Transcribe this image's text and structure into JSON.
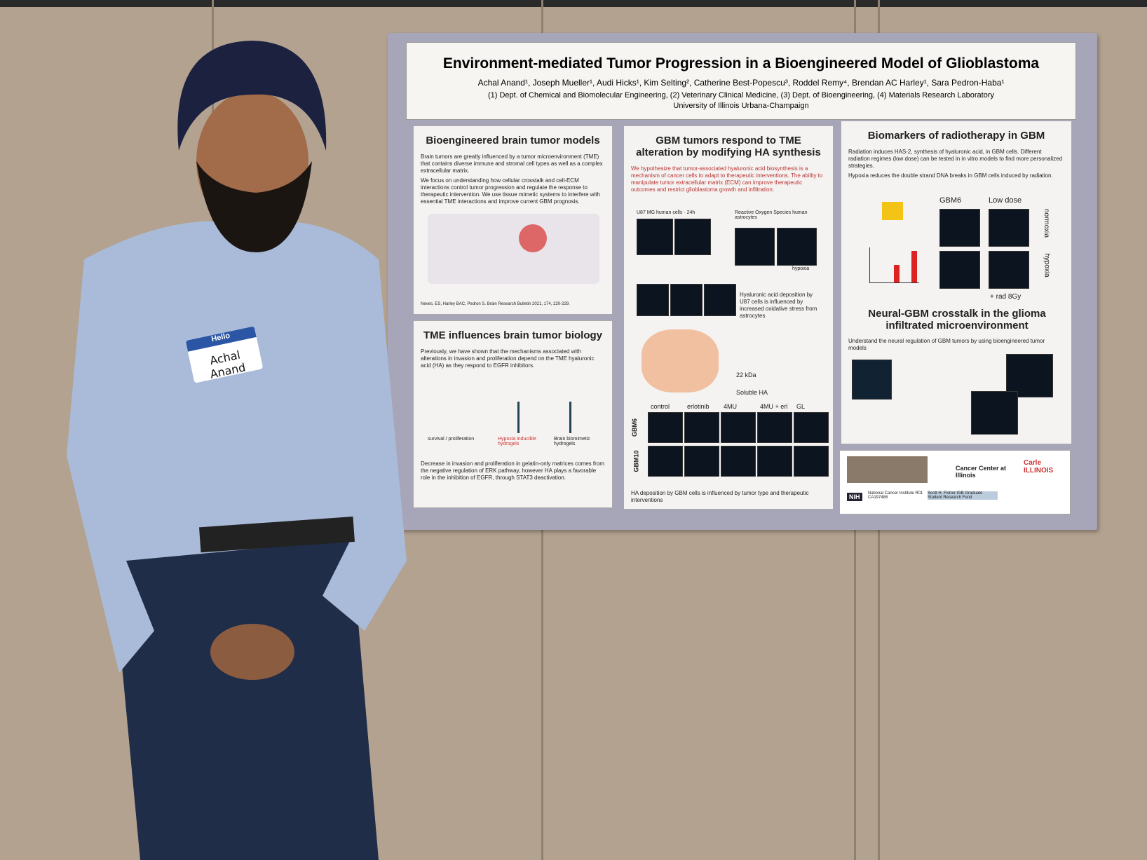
{
  "name_tag": {
    "greeting": "Hello",
    "name": "Achal Anand"
  },
  "poster": {
    "title": "Environment-mediated Tumor Progression in a Bioengineered Model of Glioblastoma",
    "authors": "Achal Anand¹, Joseph Mueller¹, Audi Hicks¹, Kim Selting², Catherine Best-Popescu³, Roddel Remy⁴, Brendan AC Harley¹, Sara Pedron-Haba¹",
    "affiliations": "(1) Dept. of Chemical and Biomolecular Engineering, (2) Veterinary Clinical Medicine, (3) Dept. of Bioengineering, (4) Materials Research Laboratory",
    "university": "University of Illinois Urbana-Champaign",
    "models": {
      "title": "Bioengineered brain tumor models",
      "p1": "Brain tumors are greatly influenced by a tumor microenvironment (TME) that contains diverse immune and stromal cell types as well as a complex extracellular matrix.",
      "p2": "We focus on understanding how cellular crosstalk and cell-ECM interactions control tumor progression and regulate the response to therapeutic intervention. We use tissue mimetic systems to interfere with essential TME interactions and improve current GBM prognosis.",
      "ref": "Neves, ES, Harley BAC, Pedron S. Brain Research Bulletin 2021, 174, 220-229."
    },
    "tme": {
      "title": "TME influences brain tumor biology",
      "p1": "Previously, we have shown that the mechanisms associated with alterations in invasion and proliferation depend on the TME hyaluronic acid (HA) as they respond to EGFR inhibitors.",
      "fig1": "survival / proliferation",
      "fig2": "Hypoxia inducible hydrogels",
      "fig3": "Brain biomimetic hydrogels",
      "p2": "Decrease in invasion and proliferation in gelatin-only matrices comes from the negative regulation of ERK pathway, however HA plays a favorable role in the inhibition of EGFR, through STAT3 deactivation."
    },
    "ha": {
      "title": "GBM tumors respond to TME alteration by modifying HA synthesis",
      "hypothesis": "We hypothesize that tumor-associated hyaluronic acid biosynthesis is a mechanism of cancer cells to adapt to therapeutic interventions. The ability to manipulate tumor extracellular matrix (ECM) can improve therapeutic outcomes and restrict glioblastoma growth and infiltration.",
      "u87": "U87 MG human cells · 24h",
      "ros": "Reactive Oxygen Species human astrocytes",
      "hypoxia": "hypoxia",
      "deposition": "Hyaluronic acid deposition by U87 cells is influenced by increased oxidative stress from astrocytes",
      "kda": "22 kDa",
      "soluble": "Soluble HA",
      "conditions": [
        "control",
        "erlotinib",
        "4MU",
        "4MU + erl",
        "GL"
      ],
      "rows": [
        "GBM6",
        "GBM10"
      ],
      "footer": "HA deposition by GBM cells is influenced by tumor type and therapeutic interventions"
    },
    "radio": {
      "title": "Biomarkers of radiotherapy in GBM",
      "p1": "Radiation induces HAS-2, synthesis of hyaluronic acid, in GBM cells. Different radiation regimes (low dose) can be tested in in vitro models to find more personalized strategies.",
      "p2": "Hypoxia reduces the double strand DNA breaks in GBM cells induced by radiation.",
      "col1": "GBM6",
      "col2": "Low dose",
      "row1": "normoxia",
      "row2": "hypoxia",
      "rad": "+ rad 8Gy"
    },
    "neural": {
      "title": "Neural-GBM crosstalk in the glioma infiltrated microenvironment",
      "p1": "Understand the neural regulation of GBM tumors by using bioengineered tumor models"
    },
    "logos": {
      "cancer": "Cancer Center at Illinois",
      "carle": "Carle ILLINOIS",
      "nih": "NIH",
      "nci": "National Cancer Institute R01 CA197488",
      "fisher": "Scott H. Fisher IGB Graduate Student Research Fund"
    }
  }
}
